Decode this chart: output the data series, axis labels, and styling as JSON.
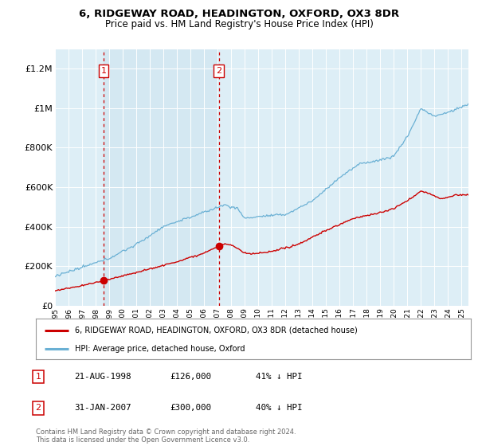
{
  "title": "6, RIDGEWAY ROAD, HEADINGTON, OXFORD, OX3 8DR",
  "subtitle": "Price paid vs. HM Land Registry's House Price Index (HPI)",
  "legend_label_red": "6, RIDGEWAY ROAD, HEADINGTON, OXFORD, OX3 8DR (detached house)",
  "legend_label_blue": "HPI: Average price, detached house, Oxford",
  "transaction1_label": "1",
  "transaction1_date": "21-AUG-1998",
  "transaction1_price": "£126,000",
  "transaction1_hpi": "41% ↓ HPI",
  "transaction2_label": "2",
  "transaction2_date": "31-JAN-2007",
  "transaction2_price": "£300,000",
  "transaction2_hpi": "40% ↓ HPI",
  "footnote": "Contains HM Land Registry data © Crown copyright and database right 2024.\nThis data is licensed under the Open Government Licence v3.0.",
  "background_color": "#ffffff",
  "plot_bg_color": "#ddeef6",
  "shade_color": "#cce4f0",
  "red_color": "#cc0000",
  "blue_color": "#6ab0d4",
  "vline_color": "#cc0000",
  "ylim": [
    0,
    1300000
  ],
  "yticks": [
    0,
    200000,
    400000,
    600000,
    800000,
    1000000,
    1200000
  ],
  "ytick_labels": [
    "£0",
    "£200K",
    "£400K",
    "£600K",
    "£800K",
    "£1M",
    "£1.2M"
  ],
  "t1_year": 1998.583,
  "t2_year": 2007.083,
  "t1_price": 126000,
  "t2_price": 300000
}
